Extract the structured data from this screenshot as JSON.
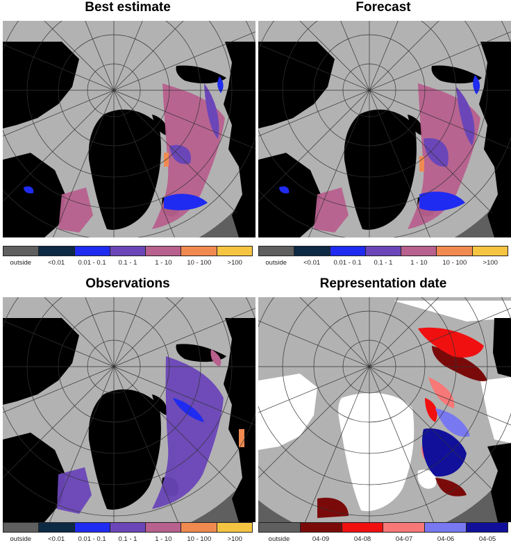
{
  "panels": [
    {
      "title": "Best estimate",
      "legend": [
        {
          "label": "outside",
          "color": "#5f5f5f"
        },
        {
          "label": "<0.01",
          "color": "#0d2a44"
        },
        {
          "label": "0.01 - 0.1",
          "color": "#1f2bf0"
        },
        {
          "label": "0.1 - 1",
          "color": "#6a46b8"
        },
        {
          "label": "1 - 10",
          "color": "#b8608e"
        },
        {
          "label": "10 - 100",
          "color": "#f08a50"
        },
        {
          "label": ">100",
          "color": "#f5c542"
        }
      ]
    },
    {
      "title": "Forecast",
      "legend": [
        {
          "label": "outside",
          "color": "#5f5f5f"
        },
        {
          "label": "<0.01",
          "color": "#0d2a44"
        },
        {
          "label": "0.01 - 0.1",
          "color": "#1f2bf0"
        },
        {
          "label": "0.1 - 1",
          "color": "#6a46b8"
        },
        {
          "label": "1 - 10",
          "color": "#b8608e"
        },
        {
          "label": "10 - 100",
          "color": "#f08a50"
        },
        {
          "label": ">100",
          "color": "#f5c542"
        }
      ]
    },
    {
      "title": "Observations",
      "legend": [
        {
          "label": "outside",
          "color": "#5f5f5f"
        },
        {
          "label": "<0.01",
          "color": "#0d2a44"
        },
        {
          "label": "0.01 - 0.1",
          "color": "#1f2bf0"
        },
        {
          "label": "0.1 - 1",
          "color": "#6a46b8"
        },
        {
          "label": "1 - 10",
          "color": "#b8608e"
        },
        {
          "label": "10 - 100",
          "color": "#f08a50"
        },
        {
          "label": ">100",
          "color": "#f5c542"
        }
      ]
    },
    {
      "title": "Representation date",
      "legend": [
        {
          "label": "outside",
          "color": "#5f5f5f"
        },
        {
          "label": "04-09",
          "color": "#7a0a0a"
        },
        {
          "label": "04-08",
          "color": "#f01010"
        },
        {
          "label": "04-07",
          "color": "#f87878"
        },
        {
          "label": "04-06",
          "color": "#7878f0"
        },
        {
          "label": "04-05",
          "color": "#10109a"
        }
      ]
    }
  ],
  "map_colors": {
    "outside": "#5f5f5f",
    "sea": "#b2b2b2",
    "land": "#000000",
    "missing": "#ffffff"
  }
}
